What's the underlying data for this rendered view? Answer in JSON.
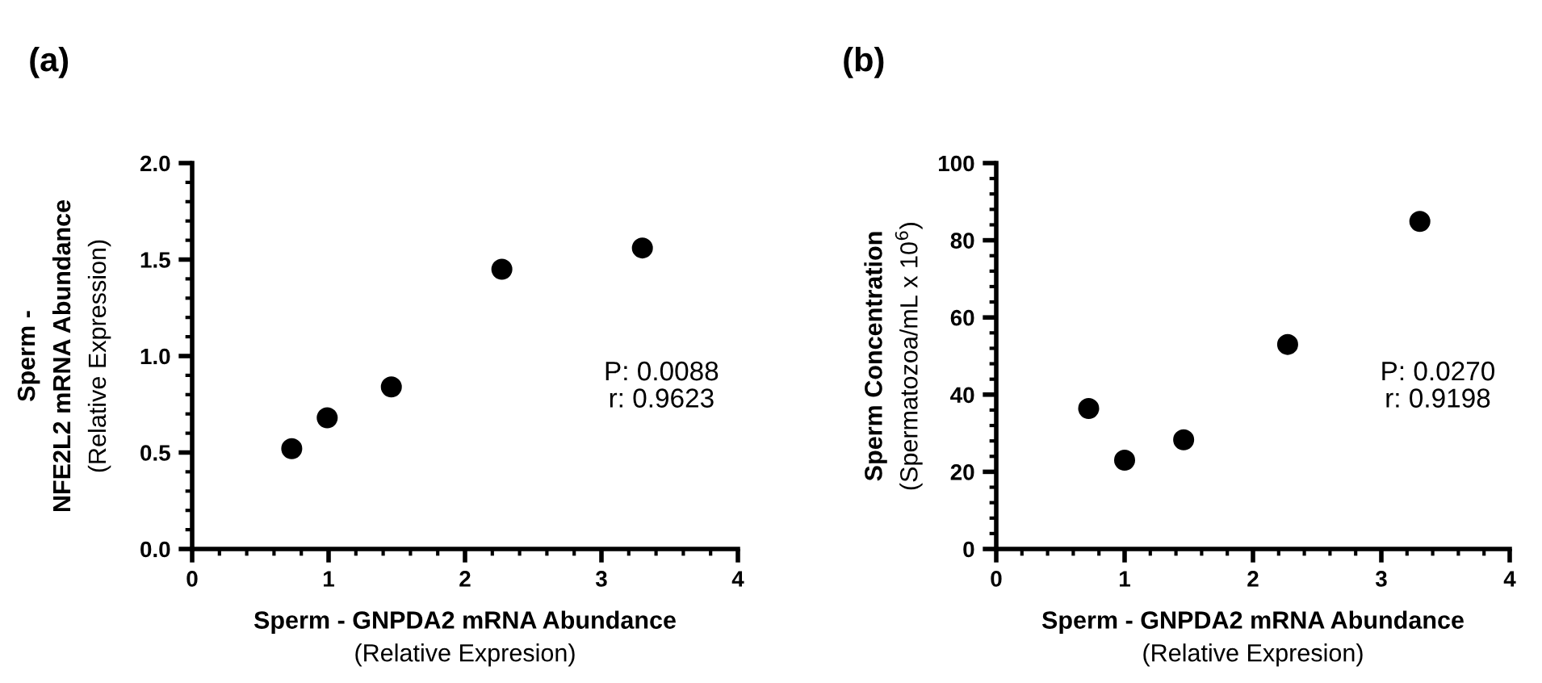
{
  "chart_data": [
    {
      "type": "scatter",
      "title": "(a)",
      "xlabel": "Sperm - GNPDA2 mRNA Abundance\n(Relative Expresion)",
      "ylabel": "Sperm -\nNFE2L2 mRNA Abundance\n(Relative Expression)",
      "x": [
        0.73,
        0.99,
        1.46,
        2.27,
        3.3
      ],
      "values": [
        0.52,
        0.68,
        0.84,
        1.45,
        1.56
      ],
      "color": "#000000",
      "marker": "circle",
      "xlim": [
        0,
        4
      ],
      "xticks": [
        0,
        1,
        2,
        3,
        4
      ],
      "ylim": [
        0,
        2.0
      ],
      "yticks": [
        {
          "value": 0,
          "label": "0.0"
        },
        0.5,
        {
          "value": 1,
          "label": "1.0"
        },
        1.5,
        {
          "value": 2,
          "label": "2.0"
        }
      ],
      "grid": false,
      "annotations": [
        "P: 0.0088\nr: 0.9623"
      ]
    },
    {
      "type": "scatter",
      "title": "(b)",
      "xlabel": "Sperm - GNPDA2 mRNA Abundance\n(Relative Expresion)",
      "ylabel": "Sperm Concentration\n(Spermatozoa/mL x 10$^{6}$)",
      "x": [
        0.72,
        1.0,
        1.46,
        2.27,
        3.3
      ],
      "values": [
        36.4,
        23.0,
        28.3,
        53.0,
        84.9
      ],
      "color": "#000000",
      "marker": "circle",
      "xlim": [
        0,
        4
      ],
      "xticks": [
        0,
        1,
        2,
        3,
        4
      ],
      "ylim": [
        0,
        100
      ],
      "yticks": [
        0,
        20,
        40,
        60,
        80,
        100
      ],
      "grid": false,
      "annotations": [
        "P: 0.0270\nr: 0.9198"
      ]
    }
  ]
}
